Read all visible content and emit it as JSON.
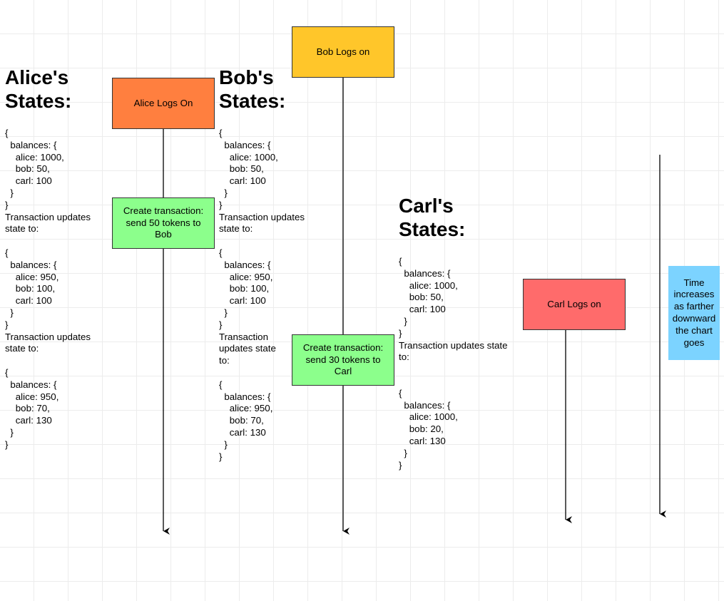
{
  "colors": {
    "alice_box": "#FF7F3F",
    "bob_box": "#FFC62A",
    "carl_box": "#FF6B6B",
    "transaction_box": "#8CFF8C",
    "time_note": "#7CD3FF",
    "line": "#000000"
  },
  "alice": {
    "heading": "Alice's\nStates:",
    "logon": "Alice Logs On",
    "transaction": "Create transaction:\nsend 50 tokens to\nBob",
    "states": "{\n  balances: {\n    alice: 1000,\n    bob: 50,\n    carl: 100\n  }\n}\nTransaction updates\nstate to:\n\n{\n  balances: {\n    alice: 950,\n    bob: 100,\n    carl: 100\n  }\n}\nTransaction updates\nstate to:\n\n{\n  balances: {\n    alice: 950,\n    bob: 70,\n    carl: 130\n  }\n}"
  },
  "bob": {
    "heading": "Bob's\nStates:",
    "logon": "Bob Logs on",
    "transaction": "Create transaction:\nsend 30 tokens to\nCarl",
    "states": "{\n  balances: {\n    alice: 1000,\n    bob: 50,\n    carl: 100\n  }\n}\nTransaction updates\nstate to:\n\n{\n  balances: {\n    alice: 950,\n    bob: 100,\n    carl: 100\n  }\n}\nTransaction\nupdates state\nto:\n\n{\n  balances: {\n    alice: 950,\n    bob: 70,\n    carl: 130\n  }\n}"
  },
  "carl": {
    "heading": "Carl's\nStates:",
    "logon": "Carl Logs on",
    "states": "{\n  balances: {\n    alice: 1000,\n    bob: 50,\n    carl: 100\n  }\n}\nTransaction updates state\nto:\n\n\n{\n  balances: {\n    alice: 1000,\n    bob: 20,\n    carl: 130\n  }\n}"
  },
  "time_note": "Time\nincreases\nas farther\ndownward\nthe chart\ngoes"
}
